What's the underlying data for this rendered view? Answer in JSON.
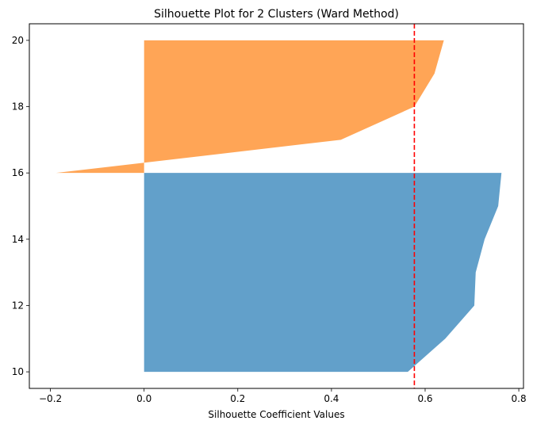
{
  "chart_data": {
    "type": "area",
    "title": "Silhouette Plot for 2 Clusters (Ward Method)",
    "xlabel": "Silhouette Coefficient Values",
    "ylabel": "",
    "xlim": [
      -0.245,
      0.81
    ],
    "ylim": [
      9.5,
      20.5
    ],
    "xticks": [
      -0.2,
      0.0,
      0.2,
      0.4,
      0.6,
      0.8
    ],
    "xtick_labels": [
      "−0.2",
      "0.0",
      "0.2",
      "0.4",
      "0.6",
      "0.8"
    ],
    "yticks": [
      10,
      12,
      14,
      16,
      18,
      20
    ],
    "ytick_labels": [
      "10",
      "12",
      "14",
      "16",
      "18",
      "20"
    ],
    "grid": false,
    "series": [
      {
        "color": "#1f77b4",
        "opacity": 0.7,
        "y": [
          10,
          11,
          12,
          13,
          14,
          15,
          16
        ],
        "silhouette": [
          0.563,
          0.643,
          0.705,
          0.708,
          0.727,
          0.756,
          0.763
        ]
      },
      {
        "color": "#ff7f0e",
        "opacity": 0.7,
        "y": [
          16,
          17,
          18,
          19,
          20
        ],
        "silhouette": [
          -0.188,
          0.42,
          0.577,
          0.62,
          0.64
        ]
      }
    ],
    "average_line": {
      "x": 0.577,
      "color": "#ff0000",
      "style": "dashed"
    }
  }
}
